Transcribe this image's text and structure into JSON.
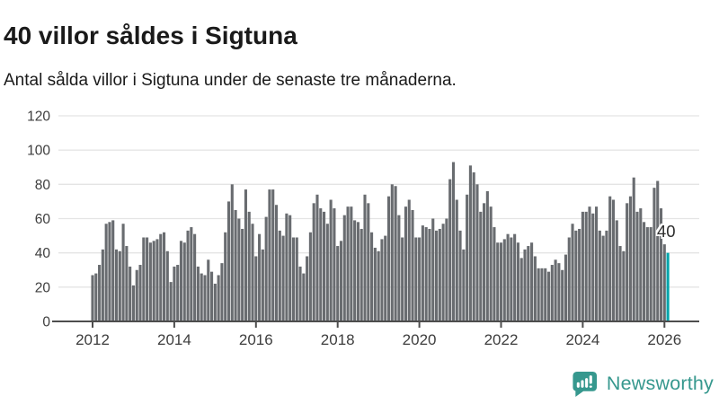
{
  "header": {
    "title": "40 villor såldes i Sigtuna",
    "subtitle": "Antal sålda villor i Sigtuna under de senaste tre månaderna."
  },
  "chart_data": {
    "type": "bar",
    "title": "40 villor såldes i Sigtuna",
    "subtitle": "Antal sålda villor i Sigtuna under de senaste tre månaderna.",
    "xlabel": "",
    "ylabel": "",
    "ylim": [
      0,
      120
    ],
    "yticks": [
      0,
      20,
      40,
      60,
      80,
      100,
      120
    ],
    "xticks": [
      2012,
      2014,
      2016,
      2018,
      2020,
      2022,
      2024,
      2026
    ],
    "grid": "horizontal",
    "legend": "none",
    "start_month": "2012-01",
    "end_month": "2026-02",
    "values": [
      27,
      28,
      33,
      42,
      57,
      58,
      59,
      42,
      41,
      57,
      44,
      32,
      21,
      30,
      33,
      49,
      49,
      46,
      47,
      48,
      51,
      52,
      41,
      23,
      32,
      33,
      47,
      46,
      53,
      55,
      51,
      32,
      28,
      27,
      36,
      29,
      22,
      27,
      34,
      52,
      70,
      80,
      65,
      60,
      54,
      77,
      64,
      57,
      38,
      51,
      42,
      61,
      77,
      77,
      68,
      53,
      50,
      63,
      62,
      49,
      49,
      32,
      28,
      38,
      52,
      69,
      74,
      66,
      64,
      57,
      71,
      66,
      44,
      47,
      62,
      67,
      67,
      59,
      58,
      54,
      74,
      69,
      52,
      43,
      41,
      48,
      50,
      73,
      80,
      79,
      62,
      49,
      67,
      71,
      65,
      49,
      49,
      56,
      55,
      54,
      60,
      53,
      54,
      57,
      60,
      83,
      93,
      71,
      53,
      42,
      74,
      91,
      87,
      80,
      64,
      69,
      76,
      67,
      55,
      46,
      46,
      48,
      51,
      49,
      51,
      46,
      37,
      42,
      44,
      46,
      38,
      31,
      31,
      31,
      29,
      33,
      36,
      34,
      30,
      39,
      49,
      57,
      53,
      54,
      64,
      64,
      67,
      63,
      67,
      53,
      50,
      53,
      73,
      71,
      59,
      44,
      41,
      69,
      73,
      84,
      64,
      66,
      58,
      55,
      55,
      78,
      82,
      66,
      45,
      40
    ],
    "highlight_index": 169,
    "highlight_value_label": "40",
    "bar_color": "#696c70",
    "highlight_color": "#00a5ab",
    "axis_color": "#4d4d4d",
    "grid_color": "#e4e4e4"
  },
  "branding": {
    "logo_text": "Newsworthy",
    "logo_color": "#36988e",
    "logo_icon": "bar-chart-speech-bubble-icon"
  }
}
